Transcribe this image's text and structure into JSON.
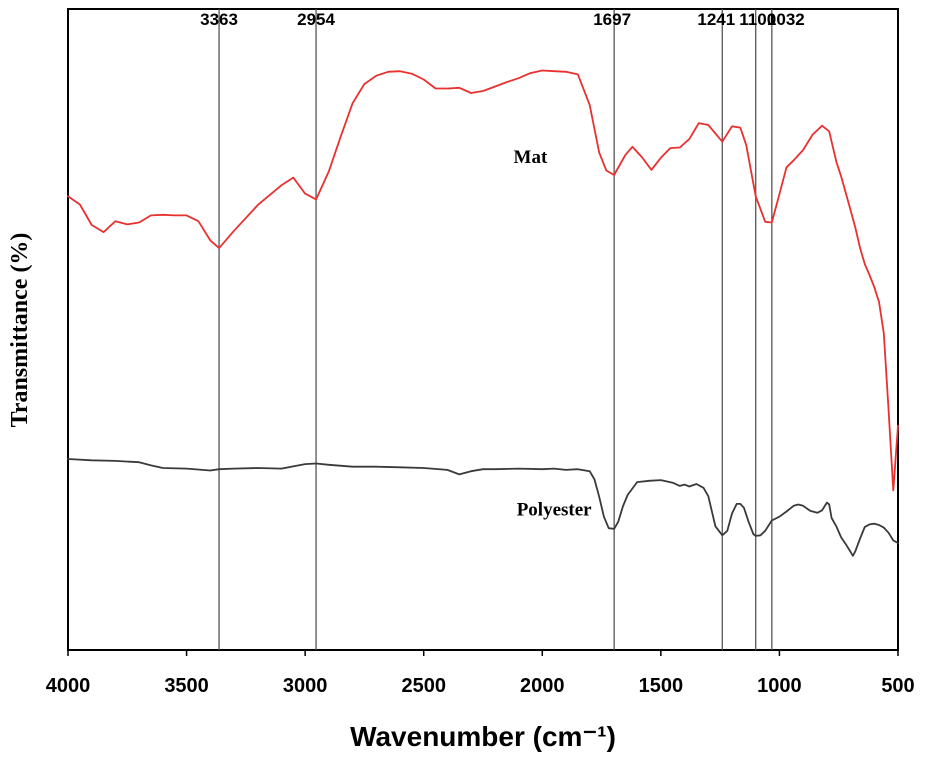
{
  "chart_data": {
    "type": "line",
    "title": "",
    "xlabel": "Wavenumber (cm⁻¹)",
    "ylabel": "Transmittance (%)",
    "xlim": [
      4000,
      500
    ],
    "ylim": [
      0,
      100
    ],
    "x_ticks": [
      4000,
      3500,
      3000,
      2500,
      2000,
      1500,
      1000,
      500
    ],
    "x_tick_labels": [
      "4000",
      "3500",
      "3000",
      "2500",
      "2000",
      "1500",
      "1000",
      "500"
    ],
    "y_ticks_shown": false,
    "grid": false,
    "peak_lines": [
      {
        "x": 3363,
        "label": "3363"
      },
      {
        "x": 2954,
        "label": "2954"
      },
      {
        "x": 1697,
        "label": "1697"
      },
      {
        "x": 1241,
        "label": "1241"
      },
      {
        "x": 1100,
        "label": "1100"
      },
      {
        "x": 1032,
        "label": "1032"
      }
    ],
    "series": [
      {
        "name": "Mat",
        "label": "Mat",
        "color": "#e8312f",
        "x": [
          4000,
          3950,
          3900,
          3850,
          3800,
          3750,
          3700,
          3650,
          3600,
          3550,
          3500,
          3450,
          3400,
          3363,
          3300,
          3200,
          3100,
          3050,
          3000,
          2954,
          2900,
          2850,
          2800,
          2750,
          2700,
          2650,
          2600,
          2550,
          2500,
          2450,
          2400,
          2350,
          2300,
          2250,
          2200,
          2150,
          2100,
          2050,
          2000,
          1950,
          1900,
          1850,
          1800,
          1760,
          1730,
          1697,
          1650,
          1620,
          1580,
          1540,
          1500,
          1460,
          1420,
          1380,
          1340,
          1300,
          1241,
          1200,
          1165,
          1140,
          1100,
          1060,
          1032,
          1000,
          970,
          940,
          900,
          860,
          820,
          790,
          760,
          740,
          720,
          700,
          680,
          660,
          640,
          620,
          600,
          580,
          560,
          540,
          520,
          500
        ],
        "values": [
          70.8,
          69.5,
          66.3,
          65.2,
          66.9,
          66.4,
          66.7,
          67.8,
          67.9,
          67.8,
          67.8,
          66.9,
          63.9,
          62.7,
          65.4,
          69.4,
          72.5,
          73.7,
          71.2,
          70.3,
          74.7,
          80.1,
          85.3,
          88.3,
          89.6,
          90.2,
          90.3,
          89.9,
          89.0,
          87.6,
          87.6,
          87.7,
          86.9,
          87.2,
          87.9,
          88.6,
          89.2,
          90.0,
          90.4,
          90.3,
          90.2,
          89.8,
          85.0,
          77.6,
          74.8,
          74.1,
          77.2,
          78.5,
          76.9,
          74.9,
          76.8,
          78.3,
          78.4,
          79.7,
          82.2,
          81.9,
          79.3,
          81.7,
          81.5,
          78.8,
          70.8,
          66.8,
          66.7,
          71.1,
          75.3,
          76.4,
          78.0,
          80.4,
          81.8,
          80.9,
          76.2,
          73.9,
          71.3,
          68.6,
          65.9,
          62.7,
          60.2,
          58.5,
          56.6,
          54.3,
          49.4,
          37.6,
          24.9,
          35.0
        ]
      },
      {
        "name": "Polyester",
        "label": "Polyester",
        "color": "#3a3a3a",
        "x": [
          4000,
          3900,
          3800,
          3700,
          3650,
          3600,
          3500,
          3400,
          3363,
          3300,
          3200,
          3100,
          3000,
          2954,
          2900,
          2800,
          2700,
          2600,
          2500,
          2400,
          2350,
          2300,
          2250,
          2200,
          2100,
          2000,
          1950,
          1900,
          1850,
          1800,
          1780,
          1760,
          1740,
          1720,
          1697,
          1680,
          1660,
          1640,
          1600,
          1550,
          1500,
          1450,
          1420,
          1400,
          1380,
          1350,
          1320,
          1300,
          1270,
          1241,
          1220,
          1200,
          1180,
          1165,
          1150,
          1130,
          1110,
          1100,
          1080,
          1060,
          1032,
          1000,
          970,
          940,
          920,
          900,
          870,
          840,
          820,
          800,
          790,
          780,
          760,
          740,
          720,
          700,
          690,
          680,
          660,
          640,
          620,
          600,
          580,
          560,
          540,
          520,
          500
        ],
        "values": [
          29.8,
          29.6,
          29.5,
          29.3,
          28.8,
          28.4,
          28.3,
          28.0,
          28.2,
          28.3,
          28.4,
          28.3,
          29.0,
          29.1,
          28.9,
          28.6,
          28.6,
          28.5,
          28.4,
          28.1,
          27.4,
          27.9,
          28.2,
          28.2,
          28.3,
          28.2,
          28.3,
          28.1,
          28.2,
          27.9,
          26.6,
          23.9,
          20.8,
          19.0,
          18.9,
          20.0,
          22.4,
          24.2,
          26.2,
          26.4,
          26.5,
          26.1,
          25.6,
          25.8,
          25.5,
          25.9,
          25.3,
          24.0,
          19.3,
          17.9,
          18.6,
          21.3,
          22.8,
          22.8,
          22.2,
          20.0,
          18.1,
          17.8,
          17.9,
          18.6,
          20.2,
          20.8,
          21.6,
          22.5,
          22.7,
          22.5,
          21.7,
          21.4,
          21.8,
          23.0,
          22.7,
          20.6,
          19.3,
          17.6,
          16.5,
          15.3,
          14.7,
          15.4,
          17.4,
          19.2,
          19.6,
          19.7,
          19.5,
          19.1,
          18.3,
          17.1,
          16.7
        ]
      }
    ],
    "annotations": [
      {
        "text": "Mat",
        "x": 2050,
        "y": 76
      },
      {
        "text": "Polyester",
        "x": 1950,
        "y": 21
      }
    ]
  }
}
